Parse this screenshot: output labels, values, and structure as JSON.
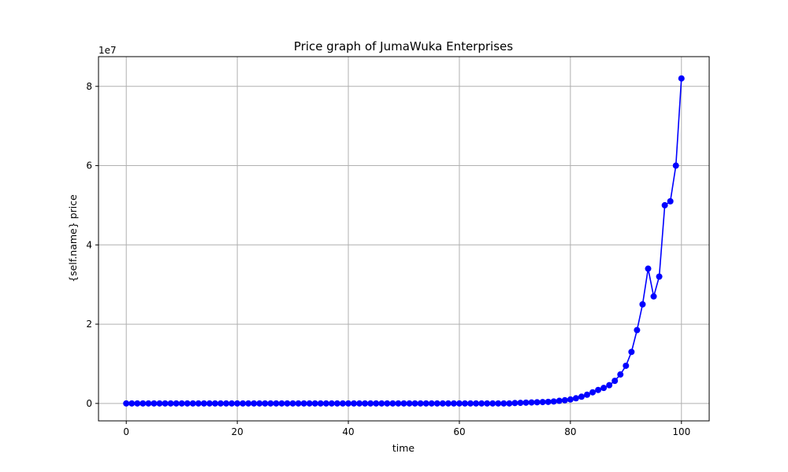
{
  "chart_data": {
    "type": "line",
    "title": "Price graph of JumaWuka Enterprises",
    "xlabel": "time",
    "ylabel": "{self.name} price",
    "y_offset_label": "1e7",
    "xlim": [
      -5,
      105
    ],
    "ylim": [
      -4400000,
      87500000
    ],
    "x_ticks": [
      0,
      20,
      40,
      60,
      80,
      100
    ],
    "x_tick_labels": [
      "0",
      "20",
      "40",
      "60",
      "80",
      "100"
    ],
    "y_ticks": [
      0,
      20000000,
      40000000,
      60000000,
      80000000
    ],
    "y_tick_labels": [
      "0",
      "2",
      "4",
      "6",
      "8"
    ],
    "grid": true,
    "series": [
      {
        "color": "#0000ff",
        "marker": "circle",
        "x": [
          0,
          1,
          2,
          3,
          4,
          5,
          6,
          7,
          8,
          9,
          10,
          11,
          12,
          13,
          14,
          15,
          16,
          17,
          18,
          19,
          20,
          21,
          22,
          23,
          24,
          25,
          26,
          27,
          28,
          29,
          30,
          31,
          32,
          33,
          34,
          35,
          36,
          37,
          38,
          39,
          40,
          41,
          42,
          43,
          44,
          45,
          46,
          47,
          48,
          49,
          50,
          51,
          52,
          53,
          54,
          55,
          56,
          57,
          58,
          59,
          60,
          61,
          62,
          63,
          64,
          65,
          66,
          67,
          68,
          69,
          70,
          71,
          72,
          73,
          74,
          75,
          76,
          77,
          78,
          79,
          80,
          81,
          82,
          83,
          84,
          85,
          86,
          87,
          88,
          89,
          90,
          91,
          92,
          93,
          94,
          95,
          96,
          97,
          98,
          99,
          100
        ],
        "values": [
          0,
          0,
          0,
          0,
          0,
          0,
          0,
          0,
          0,
          0,
          0,
          0,
          0,
          0,
          0,
          0,
          0,
          0,
          0,
          0,
          0,
          0,
          0,
          0,
          0,
          0,
          0,
          0,
          0,
          0,
          0,
          0,
          0,
          0,
          0,
          0,
          0,
          0,
          0,
          0,
          0,
          0,
          0,
          0,
          0,
          0,
          0,
          0,
          0,
          0,
          0,
          0,
          0,
          0,
          0,
          0,
          0,
          0,
          0,
          0,
          0,
          0,
          0,
          0,
          0,
          0,
          0,
          0,
          0,
          0,
          100000,
          150000,
          200000,
          250000,
          300000,
          350000,
          400000,
          500000,
          650000,
          800000,
          1000000,
          1300000,
          1700000,
          2200000,
          2800000,
          3400000,
          3900000,
          4600000,
          5700000,
          7300000,
          9500000,
          13000000,
          18500000,
          25000000,
          34000000,
          27000000,
          32000000,
          50000000,
          51000000,
          60000000,
          82000000
        ]
      }
    ]
  }
}
